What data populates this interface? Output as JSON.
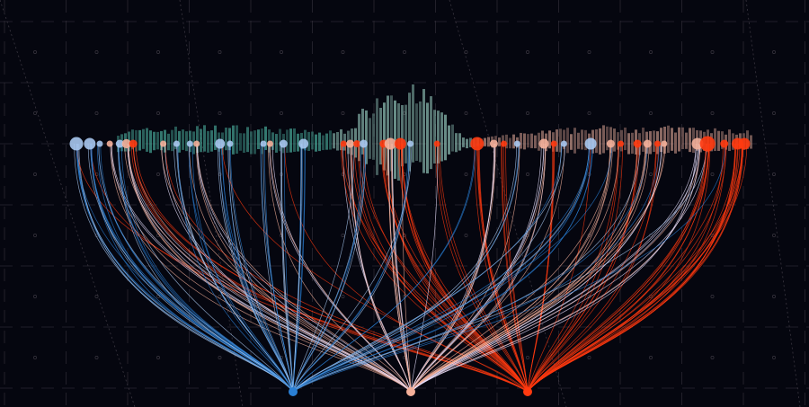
{
  "chart_data": {
    "type": "network-flow",
    "background": "#05060f",
    "grid": true,
    "colors": {
      "grid": "#3a3640",
      "histogram_left": "#4fb8a6",
      "histogram_mid": "#9fd6c8",
      "histogram_right": "#e0a898",
      "blue": "#2a7fd4",
      "light_blue": "#a8c8f0",
      "peach": "#f4b09a",
      "red": "#ff3a10"
    },
    "targets": [
      {
        "id": "A",
        "color": "#2a7fd4"
      },
      {
        "id": "B",
        "color": "#f4b09a"
      },
      {
        "id": "C",
        "color": "#ff3a10"
      }
    ],
    "nodes": [
      {
        "pos": 0,
        "w": 3,
        "t": "A"
      },
      {
        "pos": 2,
        "w": 2.5,
        "t": "A"
      },
      {
        "pos": 3.5,
        "w": 1,
        "t": "A"
      },
      {
        "pos": 5,
        "w": 1,
        "t": "B"
      },
      {
        "pos": 6.5,
        "w": 1.5,
        "t": "A"
      },
      {
        "pos": 7.5,
        "w": 1.8,
        "t": "B"
      },
      {
        "pos": 8.5,
        "w": 1.5,
        "t": "C"
      },
      {
        "pos": 13,
        "w": 1,
        "t": "B"
      },
      {
        "pos": 15,
        "w": 1,
        "t": "A"
      },
      {
        "pos": 17,
        "w": 1,
        "t": "A"
      },
      {
        "pos": 18,
        "w": 1,
        "t": "B"
      },
      {
        "pos": 21.5,
        "w": 2,
        "t": "A"
      },
      {
        "pos": 23,
        "w": 1,
        "t": "A"
      },
      {
        "pos": 28,
        "w": 1,
        "t": "A"
      },
      {
        "pos": 29,
        "w": 1,
        "t": "B"
      },
      {
        "pos": 31,
        "w": 1.5,
        "t": "A"
      },
      {
        "pos": 34,
        "w": 2,
        "t": "A"
      },
      {
        "pos": 40,
        "w": 1,
        "t": "C"
      },
      {
        "pos": 41,
        "w": 1.5,
        "t": "B"
      },
      {
        "pos": 42,
        "w": 1.2,
        "t": "C"
      },
      {
        "pos": 43,
        "w": 1.5,
        "t": "A"
      },
      {
        "pos": 46,
        "w": 1.5,
        "t": "C"
      },
      {
        "pos": 47,
        "w": 2.5,
        "t": "B"
      },
      {
        "pos": 48.5,
        "w": 2.5,
        "t": "C"
      },
      {
        "pos": 50,
        "w": 1,
        "t": "A"
      },
      {
        "pos": 54,
        "w": 1,
        "t": "C"
      },
      {
        "pos": 60,
        "w": 3,
        "t": "C"
      },
      {
        "pos": 62.5,
        "w": 1.5,
        "t": "B"
      },
      {
        "pos": 64,
        "w": 1,
        "t": "C"
      },
      {
        "pos": 66,
        "w": 1,
        "t": "A"
      },
      {
        "pos": 70,
        "w": 2,
        "t": "B"
      },
      {
        "pos": 71.5,
        "w": 1,
        "t": "C"
      },
      {
        "pos": 73,
        "w": 1,
        "t": "A"
      },
      {
        "pos": 77,
        "w": 2.5,
        "t": "A"
      },
      {
        "pos": 80,
        "w": 1.5,
        "t": "B"
      },
      {
        "pos": 81.5,
        "w": 1,
        "t": "C"
      },
      {
        "pos": 84,
        "w": 1.5,
        "t": "C"
      },
      {
        "pos": 85.5,
        "w": 1.5,
        "t": "B"
      },
      {
        "pos": 87,
        "w": 1,
        "t": "C"
      },
      {
        "pos": 88,
        "w": 1,
        "t": "B"
      },
      {
        "pos": 93,
        "w": 2.5,
        "t": "B"
      },
      {
        "pos": 94.5,
        "w": 3.5,
        "t": "C"
      },
      {
        "pos": 97,
        "w": 1.5,
        "t": "C"
      },
      {
        "pos": 99,
        "w": 2.5,
        "t": "C"
      },
      {
        "pos": 100,
        "w": 2.5,
        "t": "C"
      }
    ]
  }
}
